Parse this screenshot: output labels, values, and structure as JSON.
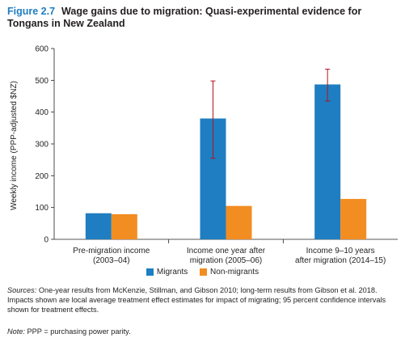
{
  "figure": {
    "number": "Figure 2.7",
    "title": "Wage gains due to migration: Quasi-experimental evidence for Tongans in New Zealand"
  },
  "chart_data": {
    "type": "bar",
    "ylabel": "Weekly income (PPP-adjusted $NZ)",
    "ylim": [
      0,
      600
    ],
    "yticks": [
      0,
      100,
      200,
      300,
      400,
      500,
      600
    ],
    "grid": false,
    "legend_position": "bottom",
    "categories": [
      [
        "Pre-migration income",
        "(2003–04)"
      ],
      [
        "Income one year after",
        "migration (2005–06)"
      ],
      [
        "Income 9–10 years",
        "after migration (2014–15)"
      ]
    ],
    "series": [
      {
        "name": "Migrants",
        "color": "#1f7ec1",
        "values": [
          82,
          380,
          487
        ],
        "ci": [
          null,
          [
            255,
            498
          ],
          [
            435,
            535
          ]
        ]
      },
      {
        "name": "Non-migrants",
        "color": "#f28d22",
        "values": [
          79,
          105,
          127
        ],
        "ci": [
          null,
          null,
          null
        ]
      }
    ],
    "ci_color": "#b5121b"
  },
  "sources": {
    "label": "Sources:",
    "text": "One-year results from McKenzie, Stillman, and Gibson 2010; long-term results from Gibson et al. 2018. Impacts shown are local average treatment effect estimates for impact of migrating; 95 percent confidence intervals shown for treatment effects."
  },
  "note": {
    "label": "Note:",
    "text": "PPP = purchasing power parity."
  }
}
